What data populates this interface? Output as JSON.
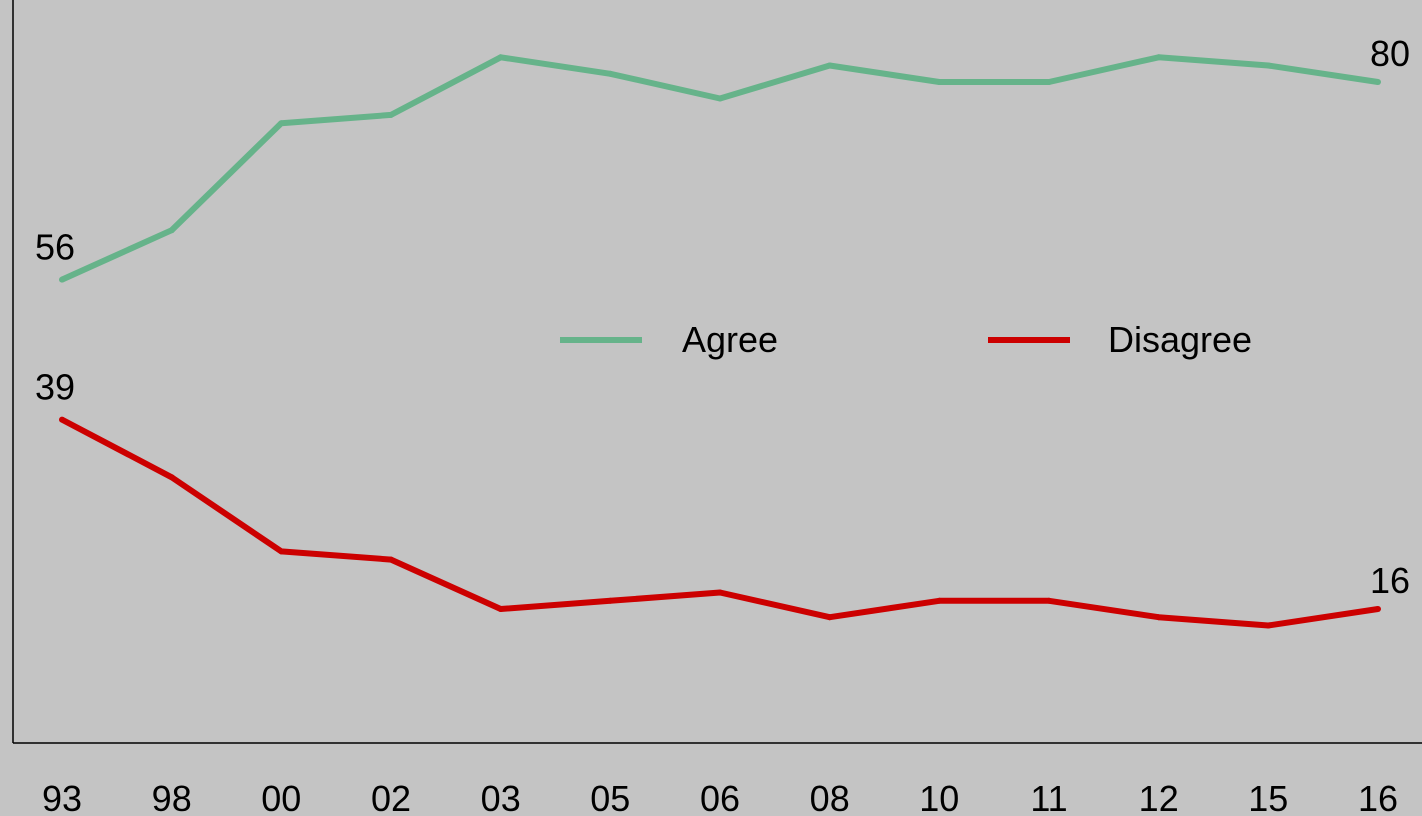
{
  "chart_data": {
    "type": "line",
    "categories": [
      "93",
      "98",
      "00",
      "02",
      "03",
      "05",
      "06",
      "08",
      "10",
      "11",
      "12",
      "15",
      "16"
    ],
    "series": [
      {
        "name": "Agree",
        "color": "#66b38a",
        "values": [
          56,
          62,
          75,
          76,
          83,
          81,
          78,
          82,
          80,
          80,
          83,
          82,
          80
        ],
        "end_labels": [
          "56",
          "80"
        ]
      },
      {
        "name": "Disagree",
        "color": "#cc0000",
        "values": [
          39,
          32,
          23,
          22,
          16,
          17,
          18,
          15,
          17,
          17,
          15,
          14,
          16
        ],
        "end_labels": [
          "39",
          "16"
        ]
      }
    ],
    "ylim": [
      0,
      86
    ],
    "grid": false,
    "legend_position": "center-right"
  }
}
